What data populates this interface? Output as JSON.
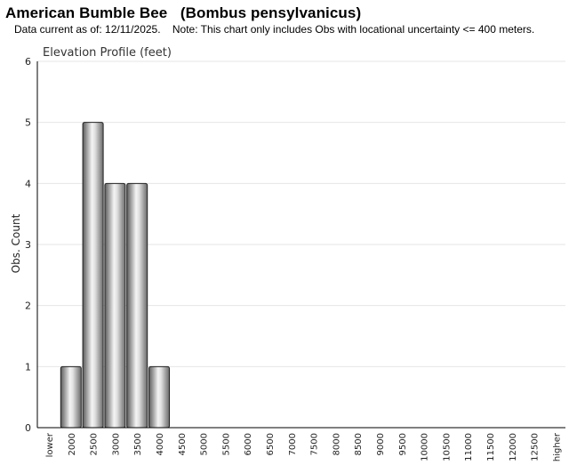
{
  "header": {
    "title": "American Bumble Bee   (Bombus pensylvanicus)",
    "subtitle": "Data current as of: 12/11/2025.    Note: This chart only includes Obs with locational uncertainty <= 400 meters."
  },
  "chart_data": {
    "type": "bar",
    "title": "Elevation Profile (feet)",
    "xlabel": "",
    "ylabel": "Obs. Count",
    "ylim": [
      0,
      6
    ],
    "yticks": [
      0,
      1,
      2,
      3,
      4,
      5,
      6
    ],
    "grid": true,
    "categories": [
      "lower",
      "2000",
      "2500",
      "3000",
      "3500",
      "4000",
      "4500",
      "5000",
      "5500",
      "6000",
      "6500",
      "7000",
      "7500",
      "8000",
      "8500",
      "9000",
      "9500",
      "10000",
      "10500",
      "11000",
      "11500",
      "12000",
      "12500",
      "higher"
    ],
    "values": [
      0,
      1,
      5,
      4,
      4,
      1,
      0,
      0,
      0,
      0,
      0,
      0,
      0,
      0,
      0,
      0,
      0,
      0,
      0,
      0,
      0,
      0,
      0,
      0
    ],
    "colors": {
      "bar_dark": "#4a4a4a",
      "bar_light": "#f2f2f2",
      "grid": "#e6e6e6",
      "axis": "#000000"
    }
  }
}
